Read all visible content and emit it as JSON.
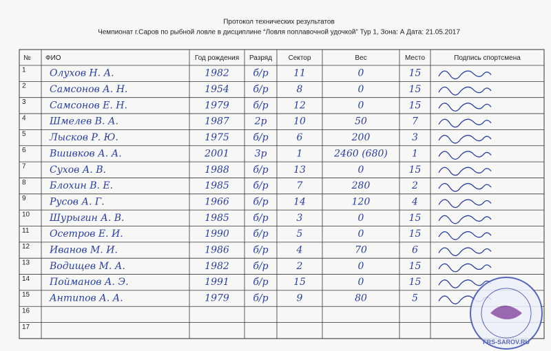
{
  "header": {
    "title": "Протокол технических результатов",
    "subtitle": "Чемпионат г.Саров по рыбной ловле в дисциплине “Ловля поплавочной удочкой” Тур 1, Зона: А  Дата: 21.05.2017"
  },
  "table": {
    "columns": [
      "№",
      "ФИО",
      "Год рождения",
      "Разряд",
      "Сектор",
      "Вес",
      "Место",
      "Подпись спортсмена"
    ],
    "rows": [
      [
        "1",
        "Олухов Н. А.",
        "1982",
        "б/р",
        "11",
        "0",
        "15"
      ],
      [
        "2",
        "Самсонов А. Н.",
        "1954",
        "б/р",
        "8",
        "0",
        "15"
      ],
      [
        "3",
        "Самсонов Е. Н.",
        "1979",
        "б/р",
        "12",
        "0",
        "15"
      ],
      [
        "4",
        "Шмелев В. А.",
        "1987",
        "2р",
        "10",
        "50",
        "7"
      ],
      [
        "5",
        "Лысков Р. Ю.",
        "1975",
        "б/р",
        "6",
        "200",
        "3"
      ],
      [
        "6",
        "Вшивков А. А.",
        "2001",
        "3р",
        "1",
        "2460 (680)",
        "1"
      ],
      [
        "7",
        "Сухов А. В.",
        "1988",
        "б/р",
        "13",
        "0",
        "15"
      ],
      [
        "8",
        "Блохин В. Е.",
        "1985",
        "б/р",
        "7",
        "280",
        "2"
      ],
      [
        "9",
        "Русов А. Г.",
        "1966",
        "б/р",
        "14",
        "120",
        "4"
      ],
      [
        "10",
        "Шурыгин А. В.",
        "1985",
        "б/р",
        "3",
        "0",
        "15"
      ],
      [
        "11",
        "Осетров Е. И.",
        "1990",
        "б/р",
        "5",
        "0",
        "15"
      ],
      [
        "12",
        "Иванов М. И.",
        "1986",
        "б/р",
        "4",
        "70",
        "6"
      ],
      [
        "13",
        "Водищев М. А.",
        "1982",
        "б/р",
        "2",
        "0",
        "15"
      ],
      [
        "14",
        "Пойманов А. Э.",
        "1991",
        "б/р",
        "15",
        "0",
        "15"
      ],
      [
        "15",
        "Антипов А. А.",
        "1979",
        "б/р",
        "9",
        "80",
        "5"
      ],
      [
        "16"
      ],
      [
        "17"
      ]
    ]
  },
  "stamp": {
    "text": "FRS-SAROV.RU"
  }
}
